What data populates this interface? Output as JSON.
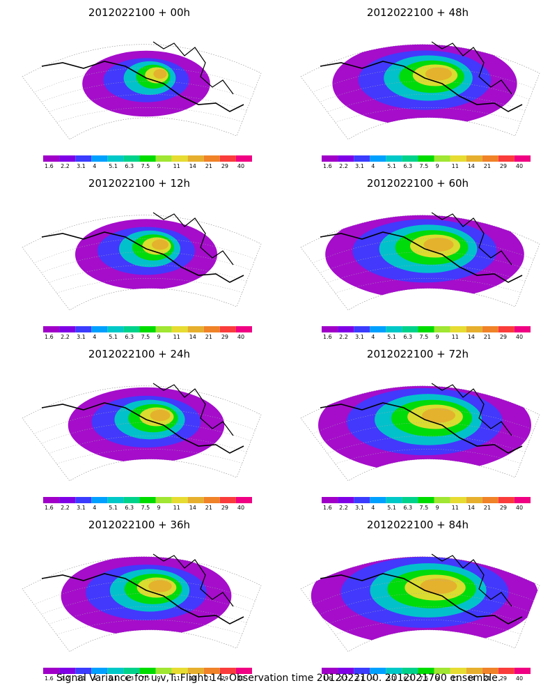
{
  "panels": [
    {
      "title": "2012022100 + 00h"
    },
    {
      "title": "2012022100 + 48h"
    },
    {
      "title": "2012022100 + 12h"
    },
    {
      "title": "2012022100 + 60h"
    },
    {
      "title": "2012022100 + 24h"
    },
    {
      "title": "2012022100 + 72h"
    },
    {
      "title": "2012022100 + 36h"
    },
    {
      "title": "2012022100 + 84h"
    }
  ],
  "colorbar": {
    "labels": [
      "1.6",
      "2.2",
      "3.1",
      "4",
      "5.1",
      "6.3",
      "7.5",
      "9",
      "11",
      "14",
      "21",
      "29",
      "40"
    ],
    "colors": [
      "#a000c8",
      "#8000e6",
      "#3c3cff",
      "#00a0ff",
      "#00c8c8",
      "#00d28c",
      "#00dc00",
      "#a0e632",
      "#e6dc32",
      "#e6af2d",
      "#f08228",
      "#fa3c3c",
      "#f00082"
    ]
  },
  "caption": "Signal Variance for u,v,T. Flight 14. Observation time 2012022100. 2012021700 ensemble."
}
